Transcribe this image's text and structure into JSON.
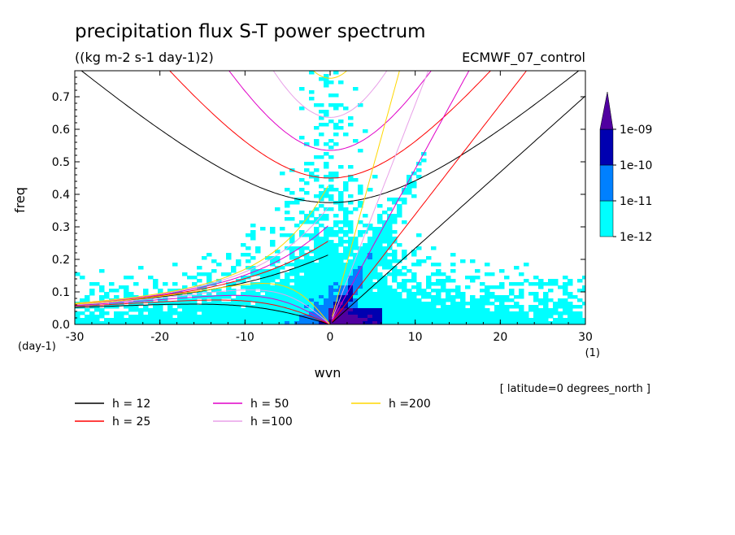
{
  "chart_data": {
    "type": "heatmap",
    "title": "precipitation flux S-T power spectrum",
    "subtitle": "((kg m-2 s-1 day-1)2)",
    "run_label": "ECMWF_07_control",
    "xlabel": "wvn",
    "xunit": "(1)",
    "ylabel": "freq",
    "yunit": "(day-1)",
    "xlim": [
      -30,
      30
    ],
    "ylim": [
      0,
      0.78
    ],
    "xticks": [
      -30,
      -20,
      -10,
      0,
      10,
      20,
      30
    ],
    "xtick_labels": [
      "-30",
      "-20",
      "-10",
      "0",
      "10",
      "20",
      "30"
    ],
    "yticks": [
      0,
      0.1,
      0.2,
      0.3,
      0.4,
      0.5,
      0.6,
      0.7
    ],
    "ytick_labels": [
      "0.0",
      "0.1",
      "0.2",
      "0.3",
      "0.4",
      "0.5",
      "0.6",
      "0.7"
    ],
    "annotation": "[ latitude=0 degrees_north ]",
    "colorbar": {
      "levels": [
        1e-12,
        1e-11,
        1e-10,
        1e-09
      ],
      "labels": [
        "1e-12",
        "1e-11",
        "1e-10",
        "1e-09"
      ],
      "colors": [
        "#00ffff",
        "#0080ff",
        "#0000b0",
        "#5000a0"
      ]
    },
    "dispersion_curves": [
      {
        "name": "h = 12",
        "color": "#000000",
        "h": 12
      },
      {
        "name": "h = 25",
        "color": "#ff0000",
        "h": 25
      },
      {
        "name": "h = 50",
        "color": "#e000c8",
        "h": 50
      },
      {
        "name": "h =100",
        "color": "#e8a0e8",
        "h": 100
      },
      {
        "name": "h =200",
        "color": "#ffd700",
        "h": 200
      }
    ],
    "x_axis_line": "0.0"
  }
}
